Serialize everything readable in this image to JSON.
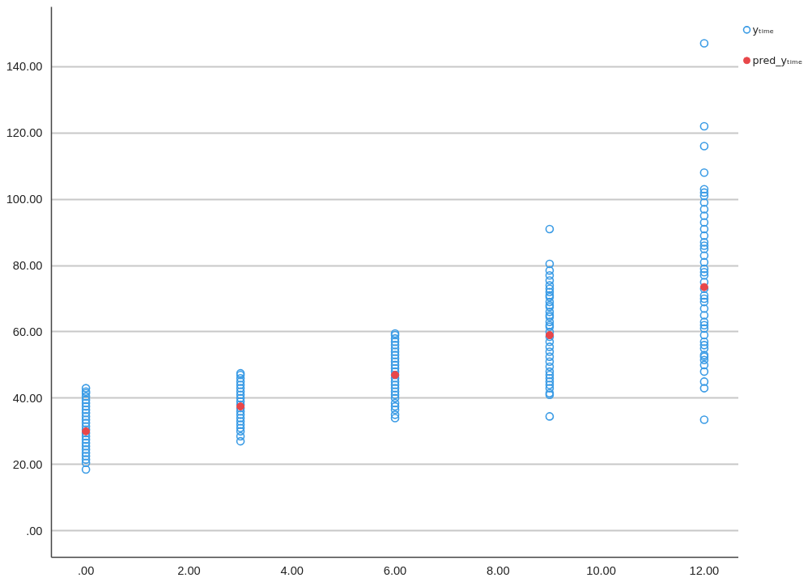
{
  "chart_data": {
    "type": "scatter",
    "xlim": [
      -0.67,
      12.67
    ],
    "ylim": [
      -8,
      158
    ],
    "xticks": [
      {
        "value": 0,
        "label": ".00"
      },
      {
        "value": 2,
        "label": "2.00"
      },
      {
        "value": 4,
        "label": "4.00"
      },
      {
        "value": 6,
        "label": "6.00"
      },
      {
        "value": 8,
        "label": "8.00"
      },
      {
        "value": 10,
        "label": "10.00"
      },
      {
        "value": 12,
        "label": "12.00"
      }
    ],
    "yticks": [
      {
        "value": 0,
        "label": ".00"
      },
      {
        "value": 20,
        "label": "20.00"
      },
      {
        "value": 40,
        "label": "40.00"
      },
      {
        "value": 60,
        "label": "60.00"
      },
      {
        "value": 80,
        "label": "80.00"
      },
      {
        "value": 100,
        "label": "100.00"
      },
      {
        "value": 120,
        "label": "120.00"
      },
      {
        "value": 140,
        "label": "140.00"
      }
    ],
    "grid": "y",
    "legend": "top right",
    "marker": "circle",
    "series": [
      {
        "name": "yₜᵢₘₑ",
        "color": "#3a9be5",
        "x": [
          0,
          0,
          0,
          0,
          0,
          0,
          0,
          0,
          0,
          0,
          0,
          0,
          0,
          0,
          0,
          0,
          0,
          0,
          0,
          0,
          0,
          0,
          0,
          0,
          0,
          3,
          3,
          3,
          3,
          3,
          3,
          3,
          3,
          3,
          3,
          3,
          3,
          3,
          3,
          3,
          3,
          3,
          3,
          3,
          3,
          3,
          6,
          6,
          6,
          6,
          6,
          6,
          6,
          6,
          6,
          6,
          6,
          6,
          6,
          6,
          6,
          6,
          6,
          6,
          6,
          6,
          6,
          6,
          6,
          6,
          6,
          6,
          9,
          9,
          9,
          9,
          9,
          9,
          9,
          9,
          9,
          9,
          9,
          9,
          9,
          9,
          9,
          9,
          9,
          9,
          9,
          9,
          9,
          9,
          9,
          9,
          9,
          9,
          9,
          9,
          9,
          9,
          9,
          9,
          9,
          9,
          9,
          9,
          12,
          12,
          12,
          12,
          12,
          12,
          12,
          12,
          12,
          12,
          12,
          12,
          12,
          12,
          12,
          12,
          12,
          12,
          12,
          12,
          12,
          12,
          12,
          12,
          12,
          12,
          12,
          12,
          12,
          12,
          12,
          12,
          12,
          12,
          12,
          12,
          12,
          12,
          12,
          12,
          12,
          12,
          12
        ],
        "values": [
          18.5,
          20.5,
          21.5,
          22.5,
          23.5,
          24.5,
          25.5,
          26.5,
          27.5,
          28.5,
          29.5,
          30.5,
          31.5,
          32.5,
          33.5,
          34.5,
          35.5,
          36.5,
          37.5,
          38.5,
          39.5,
          40.5,
          41.5,
          42,
          43,
          27,
          28.5,
          30,
          31,
          32,
          33,
          34,
          35,
          36,
          37,
          38,
          39,
          40,
          41,
          42,
          43,
          44,
          45,
          46,
          47,
          47.5,
          34,
          35,
          36.5,
          37.5,
          38.5,
          40,
          41,
          42,
          43,
          44,
          45,
          46,
          47,
          48,
          49,
          50,
          51,
          52,
          53,
          54,
          55,
          56,
          57,
          58,
          59,
          59.5,
          34.5,
          41,
          41.5,
          43,
          44,
          45,
          46,
          47,
          48,
          49.5,
          51,
          52.5,
          54,
          55.5,
          57,
          58.5,
          60,
          61.5,
          62,
          63,
          64.5,
          65,
          66,
          67.5,
          68,
          69,
          70.5,
          71,
          72,
          73,
          74,
          75.5,
          77,
          78.5,
          80.5,
          91,
          33.5,
          43,
          45,
          48,
          50,
          51.5,
          52.5,
          53,
          55,
          56,
          57,
          59,
          61,
          62,
          63,
          65,
          67,
          69,
          70,
          71,
          73,
          75,
          77,
          78,
          79,
          81,
          83,
          85,
          86,
          87,
          89,
          91,
          93,
          95,
          97,
          99,
          101,
          102,
          103,
          108,
          116,
          122,
          147
        ]
      },
      {
        "name": "pred_yₜᵢₘₑ",
        "color": "#e8474a",
        "x": [
          0,
          3,
          6,
          9,
          12
        ],
        "values": [
          30,
          37.5,
          47,
          59,
          73.5
        ]
      }
    ]
  }
}
